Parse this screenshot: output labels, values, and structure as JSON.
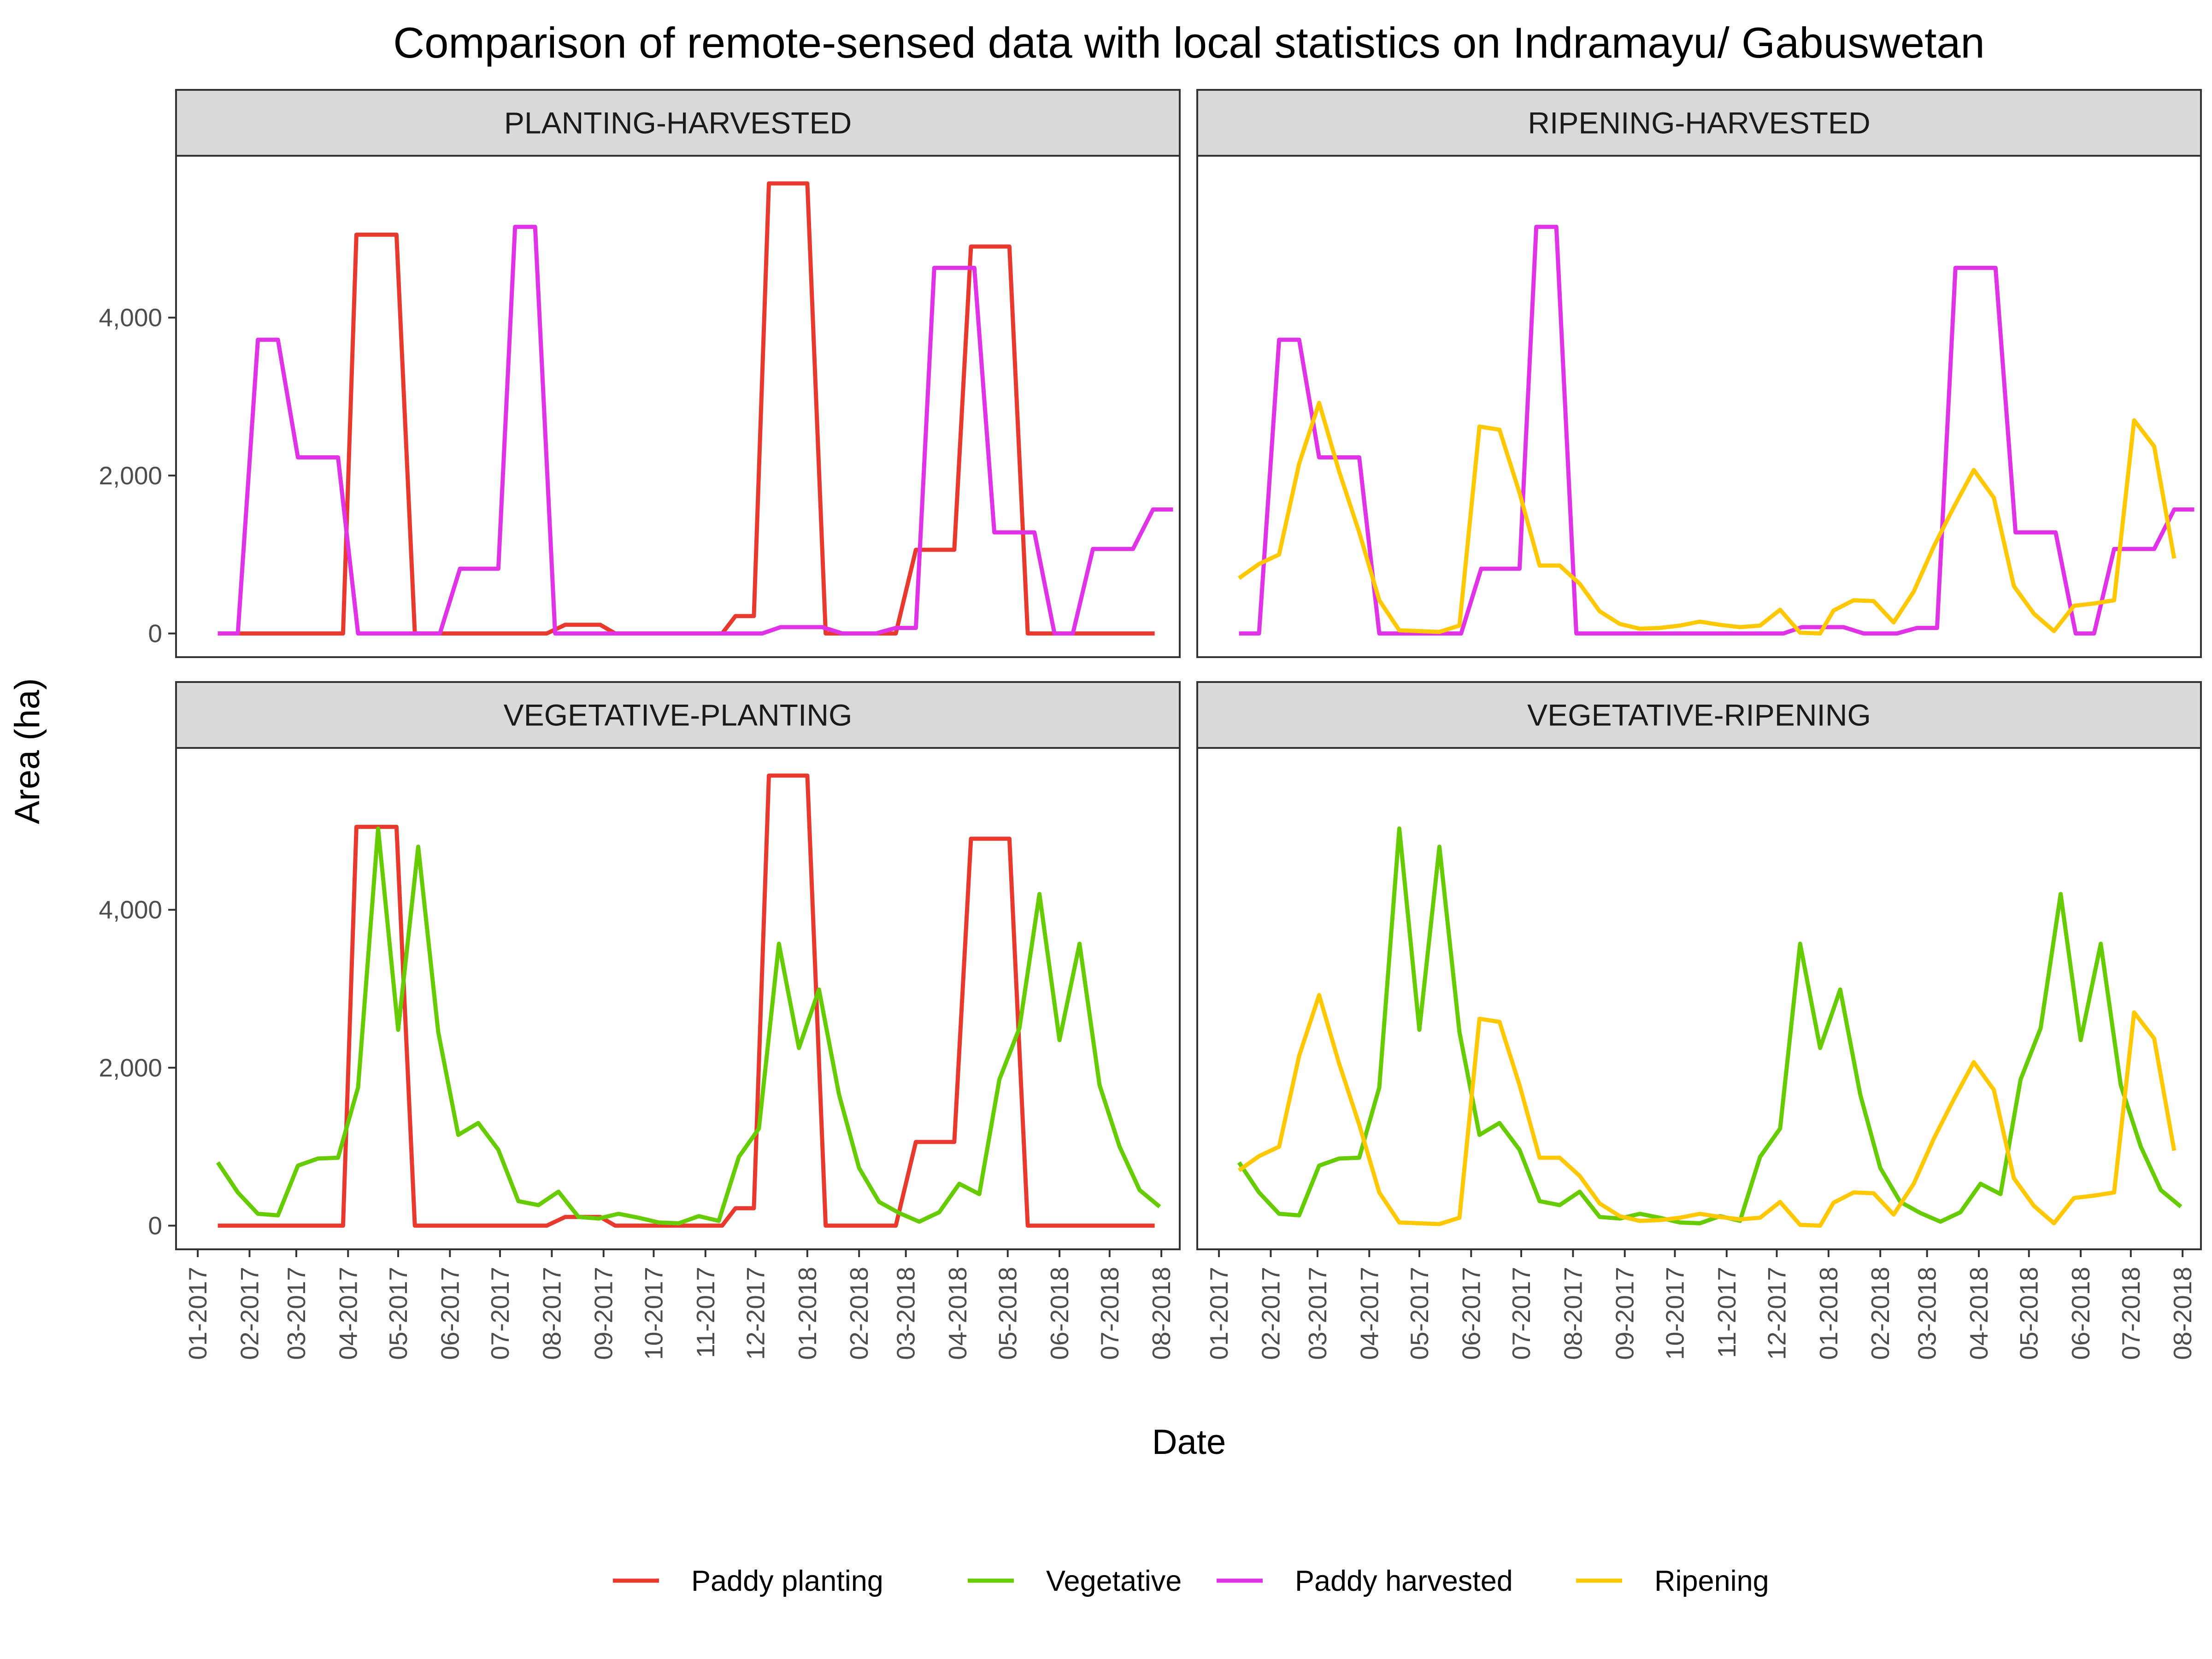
{
  "chart_data": {
    "type": "line",
    "title": "Comparison of remote-sensed data with local statistics on Indramayu/ Gabuswetan",
    "xlabel": "Date",
    "ylabel": "Area (ha)",
    "ylim": [
      -300,
      6050
    ],
    "y_ticks": [
      0,
      2000,
      4000
    ],
    "y_tick_labels": [
      "0",
      "2,000",
      "4,000"
    ],
    "x_range": [
      "2016-12-19",
      "2018-08-12"
    ],
    "x_ticks": [
      "2017-01-01",
      "2017-02-01",
      "2017-03-01",
      "2017-04-01",
      "2017-05-01",
      "2017-06-01",
      "2017-07-01",
      "2017-08-01",
      "2017-09-01",
      "2017-10-01",
      "2017-11-01",
      "2017-12-01",
      "2018-01-01",
      "2018-02-01",
      "2018-03-01",
      "2018-04-01",
      "2018-05-01",
      "2018-06-01",
      "2018-07-01",
      "2018-08-01"
    ],
    "x_tick_labels": [
      "01-2017",
      "02-2017",
      "03-2017",
      "04-2017",
      "05-2017",
      "06-2017",
      "07-2017",
      "08-2017",
      "09-2017",
      "10-2017",
      "11-2017",
      "12-2017",
      "01-2018",
      "02-2018",
      "03-2018",
      "04-2018",
      "05-2018",
      "06-2018",
      "07-2018",
      "08-2018"
    ],
    "grid": false,
    "legend_position": "bottom",
    "panels": [
      {
        "title": "PLANTING-HARVESTED",
        "series": [
          "paddy_planting",
          "paddy_harvested"
        ]
      },
      {
        "title": "RIPENING-HARVESTED",
        "series": [
          "paddy_harvested",
          "ripening"
        ]
      },
      {
        "title": "VEGETATIVE-PLANTING",
        "series": [
          "paddy_planting",
          "vegetative"
        ]
      },
      {
        "title": "VEGETATIVE-RIPENING",
        "series": [
          "vegetative",
          "ripening"
        ]
      }
    ],
    "series": {
      "paddy_planting": {
        "name": "Paddy planting",
        "color": "#e8392e",
        "points": [
          [
            "2017-01-13",
            0
          ],
          [
            "2017-03-29",
            0
          ],
          [
            "2017-04-06",
            5050
          ],
          [
            "2017-04-30",
            5050
          ],
          [
            "2017-05-11",
            0
          ],
          [
            "2017-07-29",
            0
          ],
          [
            "2017-08-09",
            110
          ],
          [
            "2017-08-30",
            110
          ],
          [
            "2017-09-08",
            0
          ],
          [
            "2017-11-11",
            0
          ],
          [
            "2017-11-19",
            220
          ],
          [
            "2017-11-30",
            220
          ],
          [
            "2017-12-09",
            5700
          ],
          [
            "2018-01-01",
            5700
          ],
          [
            "2018-01-12",
            0
          ],
          [
            "2018-02-23",
            0
          ],
          [
            "2018-03-07",
            1060
          ],
          [
            "2018-03-30",
            1060
          ],
          [
            "2018-04-09",
            4900
          ],
          [
            "2018-05-02",
            4900
          ],
          [
            "2018-05-13",
            0
          ],
          [
            "2018-07-28",
            0
          ]
        ]
      },
      "vegetative": {
        "name": "Vegetative",
        "color": "#66cc00",
        "points": [
          [
            "2017-01-13",
            800
          ],
          [
            "2017-01-25",
            420
          ],
          [
            "2017-02-06",
            150
          ],
          [
            "2017-02-18",
            130
          ],
          [
            "2017-03-02",
            760
          ],
          [
            "2017-03-14",
            850
          ],
          [
            "2017-03-26",
            860
          ],
          [
            "2017-04-07",
            1750
          ],
          [
            "2017-04-19",
            5030
          ],
          [
            "2017-05-01",
            2480
          ],
          [
            "2017-05-13",
            4800
          ],
          [
            "2017-05-25",
            2450
          ],
          [
            "2017-06-06",
            1150
          ],
          [
            "2017-06-18",
            1300
          ],
          [
            "2017-06-30",
            960
          ],
          [
            "2017-07-12",
            310
          ],
          [
            "2017-07-24",
            260
          ],
          [
            "2017-08-05",
            430
          ],
          [
            "2017-08-17",
            110
          ],
          [
            "2017-08-29",
            90
          ],
          [
            "2017-09-10",
            150
          ],
          [
            "2017-09-22",
            100
          ],
          [
            "2017-10-04",
            40
          ],
          [
            "2017-10-16",
            30
          ],
          [
            "2017-10-28",
            120
          ],
          [
            "2017-11-09",
            60
          ],
          [
            "2017-11-21",
            870
          ],
          [
            "2017-12-03",
            1230
          ],
          [
            "2017-12-15",
            3570
          ],
          [
            "2017-12-27",
            2250
          ],
          [
            "2018-01-08",
            2990
          ],
          [
            "2018-01-20",
            1660
          ],
          [
            "2018-02-01",
            730
          ],
          [
            "2018-02-13",
            300
          ],
          [
            "2018-02-25",
            160
          ],
          [
            "2018-03-09",
            50
          ],
          [
            "2018-03-21",
            170
          ],
          [
            "2018-04-02",
            530
          ],
          [
            "2018-04-14",
            400
          ],
          [
            "2018-04-26",
            1850
          ],
          [
            "2018-05-08",
            2500
          ],
          [
            "2018-05-20",
            4200
          ],
          [
            "2018-06-01",
            2350
          ],
          [
            "2018-06-13",
            3570
          ],
          [
            "2018-06-25",
            1780
          ],
          [
            "2018-07-07",
            1000
          ],
          [
            "2018-07-19",
            450
          ],
          [
            "2018-07-31",
            240
          ]
        ]
      },
      "paddy_harvested": {
        "name": "Paddy harvested",
        "color": "#e033e8",
        "points": [
          [
            "2017-01-13",
            0
          ],
          [
            "2017-01-25",
            0
          ],
          [
            "2017-02-06",
            3720
          ],
          [
            "2017-02-18",
            3720
          ],
          [
            "2017-03-02",
            2230
          ],
          [
            "2017-03-26",
            2230
          ],
          [
            "2017-04-07",
            0
          ],
          [
            "2017-05-26",
            0
          ],
          [
            "2017-06-07",
            820
          ],
          [
            "2017-06-30",
            820
          ],
          [
            "2017-07-10",
            5150
          ],
          [
            "2017-07-22",
            5150
          ],
          [
            "2017-08-03",
            0
          ],
          [
            "2017-12-05",
            0
          ],
          [
            "2017-12-16",
            80
          ],
          [
            "2018-01-10",
            80
          ],
          [
            "2018-01-22",
            0
          ],
          [
            "2018-02-11",
            0
          ],
          [
            "2018-02-23",
            70
          ],
          [
            "2018-03-07",
            70
          ],
          [
            "2018-03-18",
            4630
          ],
          [
            "2018-04-11",
            4630
          ],
          [
            "2018-04-23",
            1280
          ],
          [
            "2018-05-17",
            1280
          ],
          [
            "2018-05-29",
            0
          ],
          [
            "2018-06-09",
            0
          ],
          [
            "2018-06-21",
            1070
          ],
          [
            "2018-07-15",
            1070
          ],
          [
            "2018-07-27",
            1570
          ],
          [
            "2018-08-08",
            1570
          ]
        ]
      },
      "ripening": {
        "name": "Ripening",
        "color": "#ffc800",
        "points": [
          [
            "2017-01-13",
            700
          ],
          [
            "2017-01-25",
            880
          ],
          [
            "2017-02-06",
            1000
          ],
          [
            "2017-02-18",
            2150
          ],
          [
            "2017-03-02",
            2920
          ],
          [
            "2017-03-14",
            2050
          ],
          [
            "2017-03-26",
            1280
          ],
          [
            "2017-04-07",
            420
          ],
          [
            "2017-04-19",
            40
          ],
          [
            "2017-05-01",
            30
          ],
          [
            "2017-05-13",
            20
          ],
          [
            "2017-05-25",
            100
          ],
          [
            "2017-06-06",
            2620
          ],
          [
            "2017-06-18",
            2580
          ],
          [
            "2017-06-30",
            1780
          ],
          [
            "2017-07-12",
            860
          ],
          [
            "2017-07-24",
            860
          ],
          [
            "2017-08-05",
            630
          ],
          [
            "2017-08-17",
            280
          ],
          [
            "2017-08-29",
            120
          ],
          [
            "2017-09-10",
            60
          ],
          [
            "2017-09-22",
            70
          ],
          [
            "2017-10-04",
            100
          ],
          [
            "2017-10-16",
            150
          ],
          [
            "2017-10-28",
            110
          ],
          [
            "2017-11-09",
            80
          ],
          [
            "2017-11-21",
            100
          ],
          [
            "2017-12-03",
            300
          ],
          [
            "2017-12-15",
            10
          ],
          [
            "2017-12-27",
            0
          ],
          [
            "2018-01-04",
            290
          ],
          [
            "2018-01-16",
            420
          ],
          [
            "2018-01-28",
            410
          ],
          [
            "2018-02-09",
            140
          ],
          [
            "2018-02-21",
            530
          ],
          [
            "2018-03-05",
            1100
          ],
          [
            "2018-03-17",
            1600
          ],
          [
            "2018-03-29",
            2070
          ],
          [
            "2018-04-10",
            1720
          ],
          [
            "2018-04-22",
            600
          ],
          [
            "2018-05-04",
            250
          ],
          [
            "2018-05-16",
            30
          ],
          [
            "2018-05-28",
            350
          ],
          [
            "2018-06-09",
            380
          ],
          [
            "2018-06-21",
            420
          ],
          [
            "2018-07-03",
            2700
          ],
          [
            "2018-07-15",
            2370
          ],
          [
            "2018-07-27",
            950
          ]
        ]
      }
    },
    "legend": [
      "Paddy planting",
      "Vegetative",
      "Paddy harvested",
      "Ripening"
    ]
  }
}
